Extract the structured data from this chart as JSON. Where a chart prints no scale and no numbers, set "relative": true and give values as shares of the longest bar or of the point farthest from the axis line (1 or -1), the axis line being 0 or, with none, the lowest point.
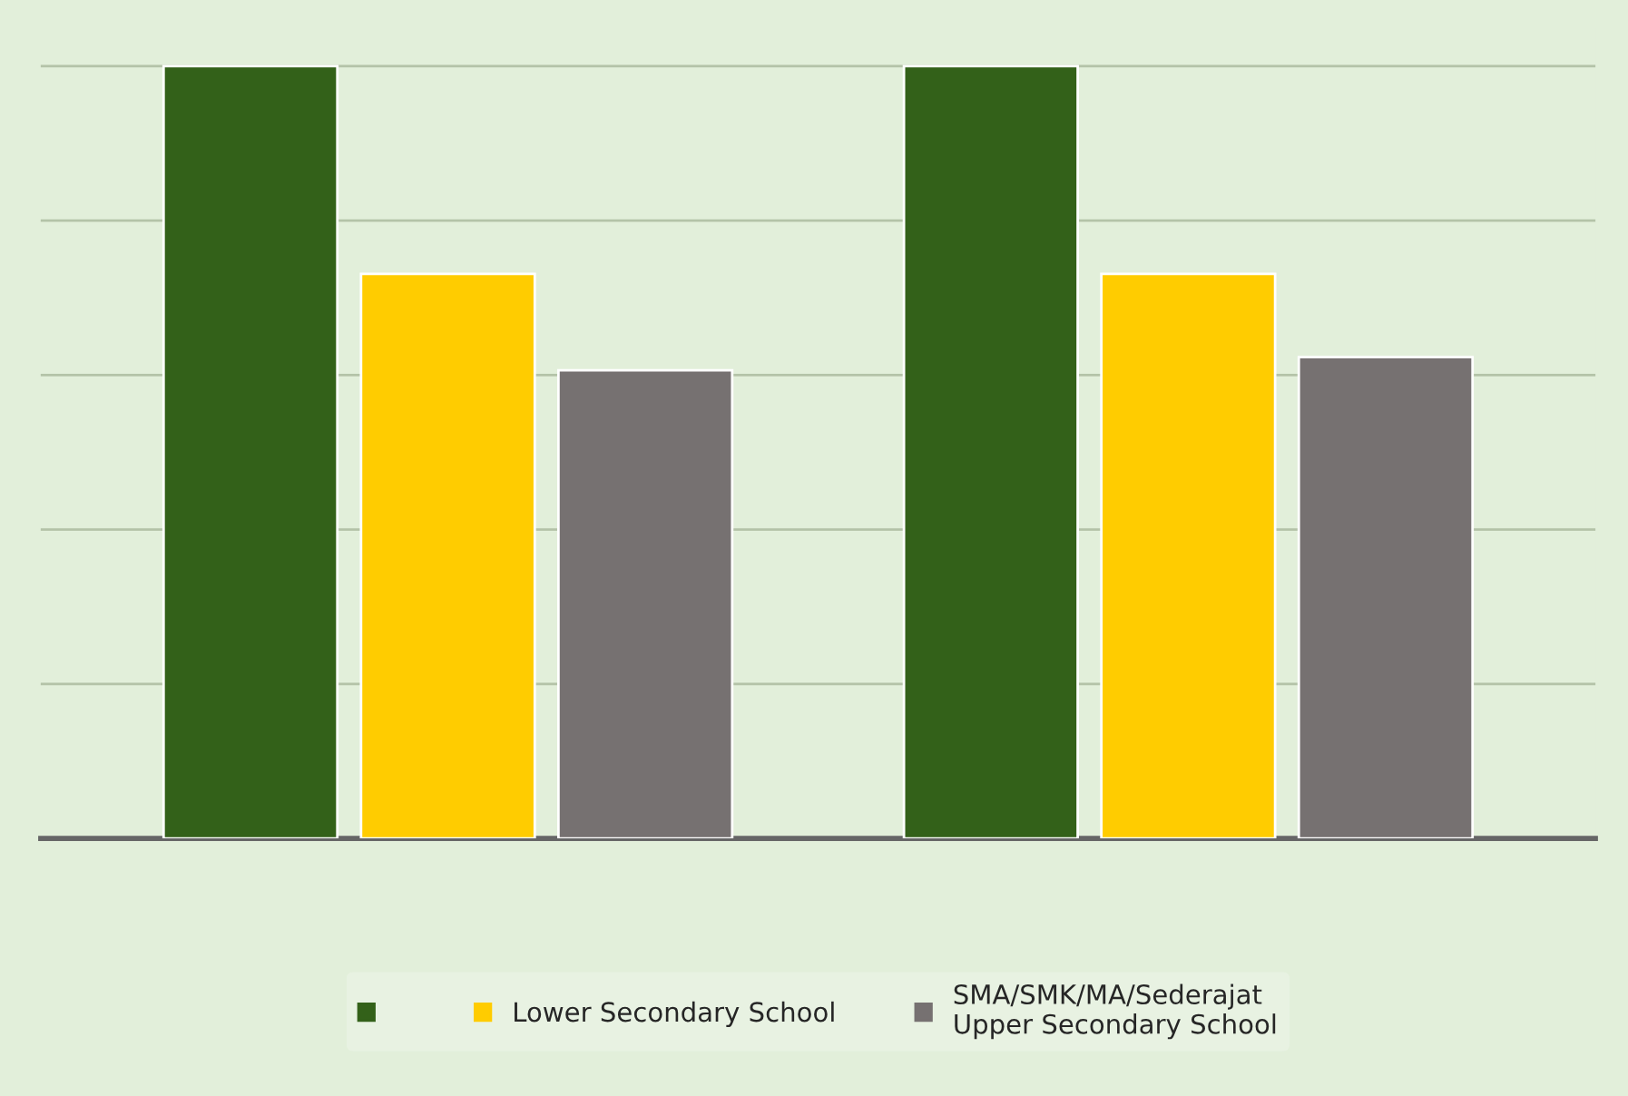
{
  "chart_data": {
    "type": "bar",
    "relative": true,
    "categories": [
      null,
      null
    ],
    "series": [
      {
        "color": "#336119",
        "values": [
          1,
          1
        ]
      },
      {
        "name": "Lower Secondary School",
        "color": "#ffcc00",
        "values": [
          0.731,
          0.731
        ]
      },
      {
        "name": "SMA/SMK/MA/Sederajat\nUpper Secondary School",
        "color": "#767171",
        "values": [
          0.606,
          0.623
        ]
      }
    ],
    "grid": "y",
    "legend": "bottom"
  }
}
